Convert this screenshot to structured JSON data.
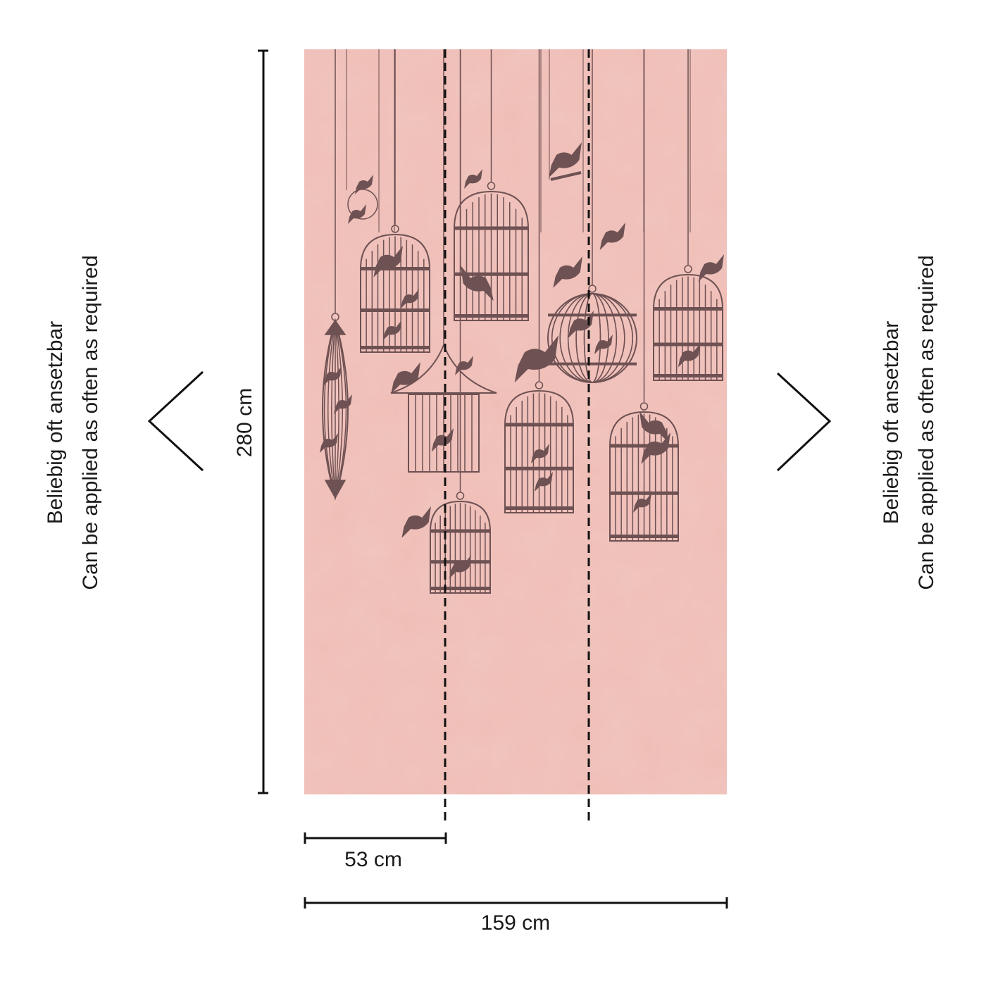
{
  "dimensions": {
    "height_label": "280 cm",
    "panel_width_label": "53 cm",
    "total_width_label": "159 cm"
  },
  "side_notes": {
    "left": {
      "line1": "Beliebig oft ansetzbar",
      "line2": "Can be applied as often as required"
    },
    "right": {
      "line1": "Beliebig oft ansetzbar",
      "line2": "Can be applied as often as required"
    }
  },
  "panels": 3,
  "colors": {
    "wallpaper": "#efbdb6",
    "motif": "#6e5153",
    "lines": "#111111"
  },
  "icons": {
    "left_arrow": "chevron-left-icon",
    "right_arrow": "chevron-right-icon"
  }
}
